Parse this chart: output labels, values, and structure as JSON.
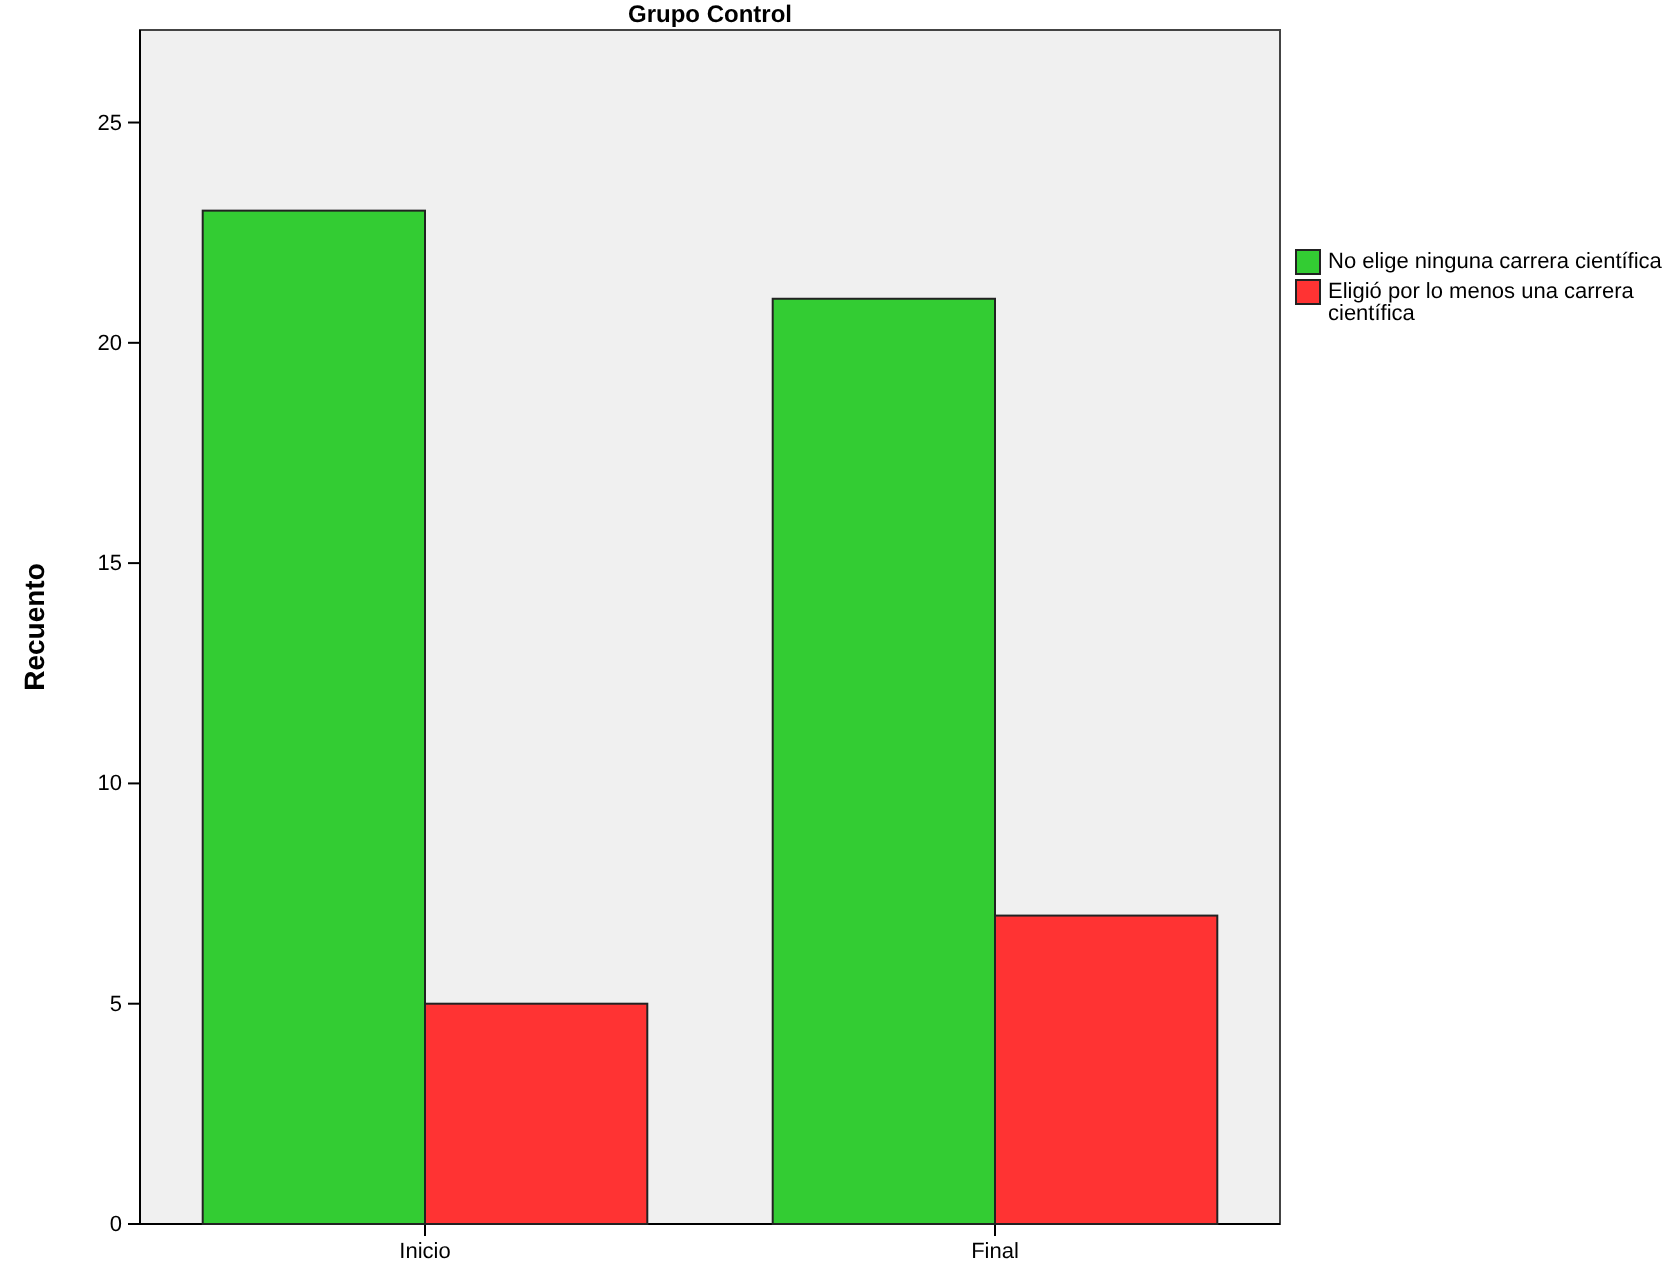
{
  "chart_data": {
    "type": "bar",
    "title": "Grupo Control",
    "ylabel": "Recuento",
    "categories": [
      "Inicio",
      "Final"
    ],
    "series": [
      {
        "name": "No elige ninguna carrera científica",
        "color": "#33cc33",
        "values": [
          23,
          21
        ]
      },
      {
        "name": "Eligió por lo menos una carrera científica",
        "color": "#ff3333",
        "values": [
          5,
          7
        ]
      }
    ],
    "ylim": [
      0,
      27.1
    ],
    "yticks": [
      0,
      5,
      10,
      15,
      20,
      25
    ],
    "grid": false,
    "legend": "top right"
  }
}
